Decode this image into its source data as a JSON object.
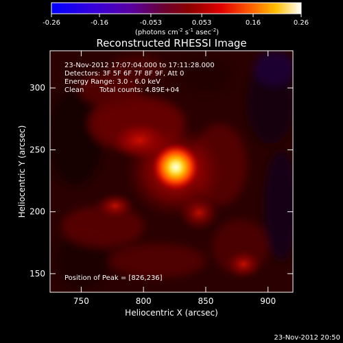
{
  "colorbar": {
    "ticks": [
      "-0.26",
      "-0.16",
      "-0.053",
      "0.053",
      "0.16",
      "0.26"
    ],
    "tick_values": [
      -0.26,
      -0.16,
      -0.053,
      0.053,
      0.16,
      0.26
    ],
    "range": [
      -0.26,
      0.26
    ],
    "units_text": "(photons cm",
    "units_exp1": "-2",
    "units_mid": " s",
    "units_exp2": "-1",
    "units_mid2": " asec",
    "units_exp3": "-2",
    "units_end": ")"
  },
  "plot": {
    "title": "Reconstructed RHESSI Image",
    "xlabel": "Heliocentric X (arcsec)",
    "ylabel": "Heliocentric Y (arcsec)",
    "x_ticks": [
      "750",
      "800",
      "850",
      "900"
    ],
    "x_tick_values": [
      750,
      800,
      850,
      900
    ],
    "y_ticks": [
      "150",
      "200",
      "250",
      "300"
    ],
    "y_tick_values": [
      150,
      200,
      250,
      300
    ],
    "xlim": [
      725,
      920
    ],
    "ylim": [
      135,
      330
    ],
    "peak_location": [
      826,
      236
    ]
  },
  "info": {
    "line1": "23-Nov-2012 17:07:04.000 to 17:11:28.000",
    "line2": "Detectors: 3F 5F 6F 7F 8F 9F, Att 0",
    "line3": "Energy Range: 3.0 - 6.0 keV",
    "line4_left": "Clean",
    "line4_right": "Total counts: 4.89E+04",
    "peak_text": "Position of Peak = [826,236]"
  },
  "footer": {
    "timestamp": "23-Nov-2012 20:50"
  }
}
